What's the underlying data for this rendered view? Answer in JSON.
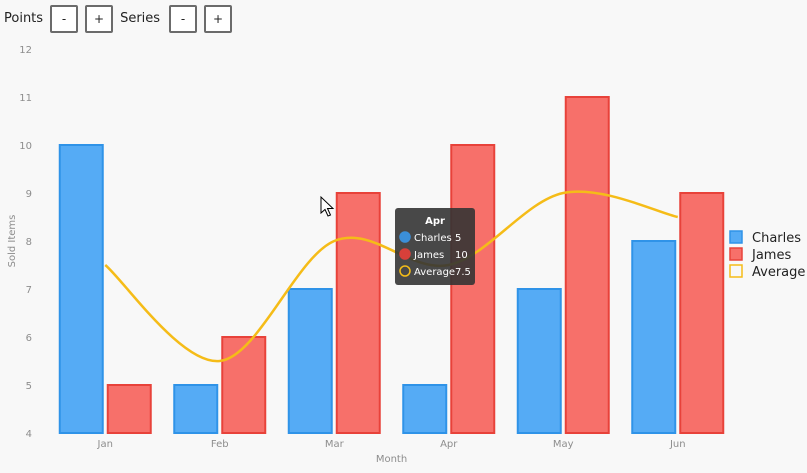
{
  "controls": {
    "points_label": "Points",
    "series_label": "Series",
    "minus": "-",
    "plus": "+"
  },
  "chart_data": {
    "type": "bar",
    "categories": [
      "Jan",
      "Feb",
      "Mar",
      "Apr",
      "May",
      "Jun"
    ],
    "series": [
      {
        "name": "Charles",
        "type": "bar",
        "values": [
          10,
          5,
          7,
          5,
          7,
          8
        ],
        "color": "#55abf5",
        "stroke": "#2f93e8"
      },
      {
        "name": "James",
        "type": "bar",
        "values": [
          5,
          6,
          9,
          10,
          11,
          9
        ],
        "color": "#f7706a",
        "stroke": "#e8423a"
      },
      {
        "name": "Average",
        "type": "line",
        "values": [
          7.5,
          5.5,
          8,
          7.5,
          9,
          8.5
        ],
        "color": "#f5bc18"
      }
    ],
    "xlabel": "Month",
    "ylabel": "Sold Items",
    "ylim": [
      4,
      12
    ],
    "yticks": [
      4,
      5,
      6,
      7,
      8,
      9,
      10,
      11,
      12
    ],
    "grid": false,
    "legend": "right",
    "tooltip": {
      "title": "Apr",
      "rows": [
        {
          "name": "Charles",
          "value": "5",
          "color": "#3b8fd9"
        },
        {
          "name": "James",
          "value": "10",
          "color": "#d8403a"
        },
        {
          "name": "Average",
          "value": "7.5",
          "color": "#f5bc18"
        }
      ]
    }
  }
}
